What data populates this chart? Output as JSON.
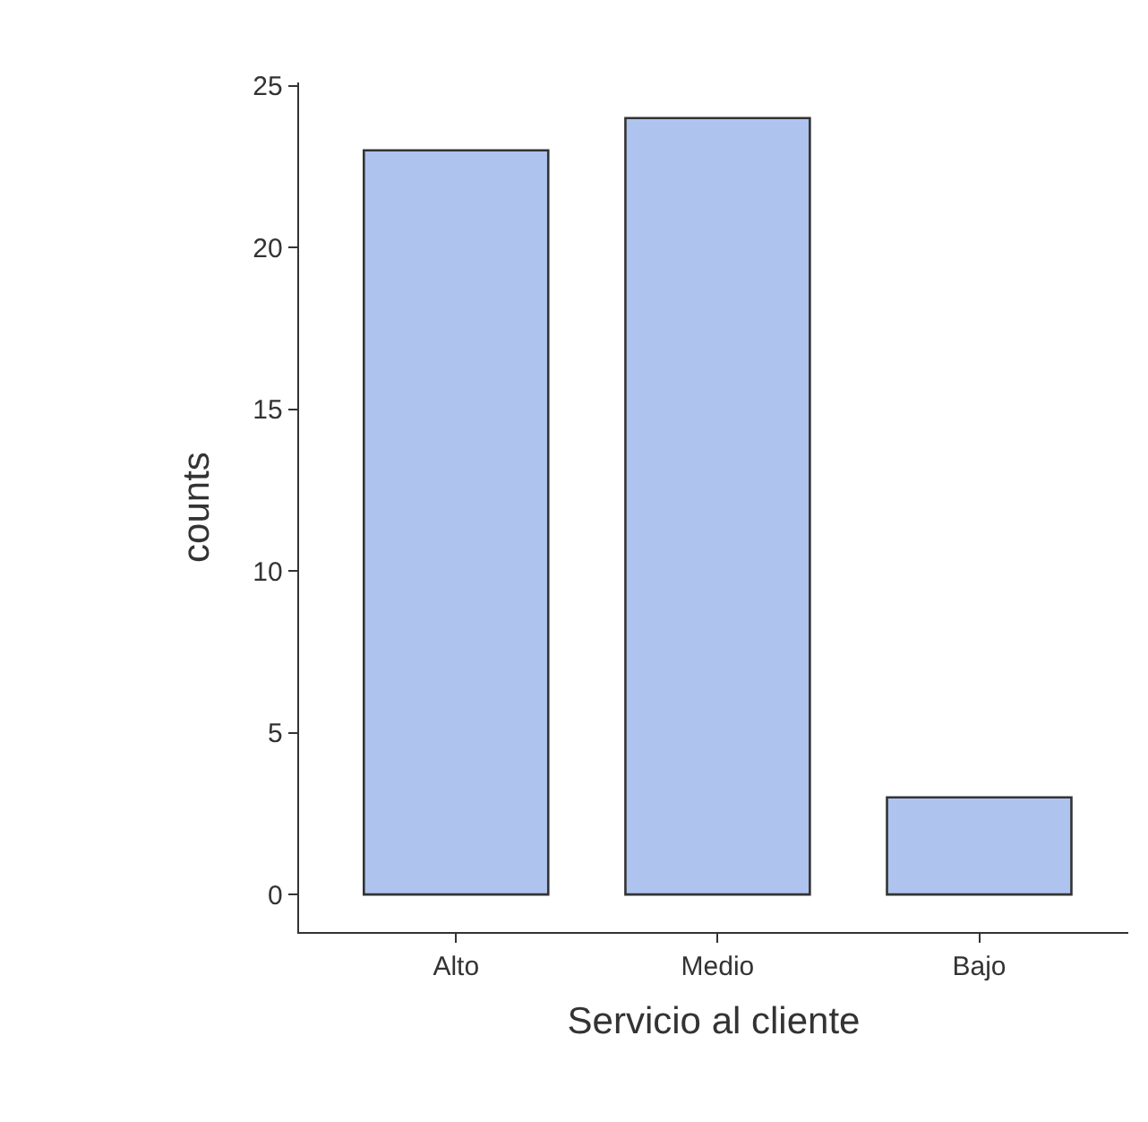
{
  "chart_data": {
    "type": "bar",
    "xlabel": "Servicio al cliente",
    "ylabel": "counts",
    "categories": [
      "Alto",
      "Medio",
      "Bajo"
    ],
    "values": [
      23,
      24,
      3
    ],
    "color": "#aec4ee",
    "ylim": [
      -1.16,
      25.1
    ],
    "yticks": [
      0,
      5,
      10,
      15,
      20,
      25
    ],
    "grid": false
  }
}
